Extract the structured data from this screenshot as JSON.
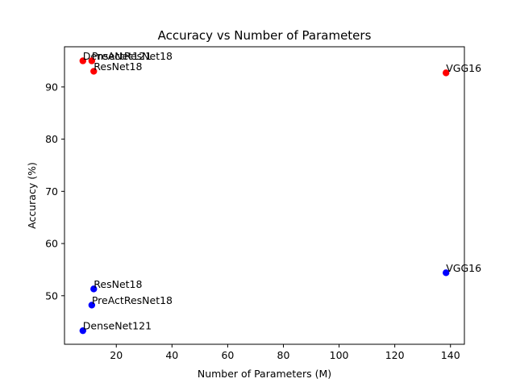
{
  "chart_data": {
    "type": "scatter",
    "title": "Accuracy vs Number of Parameters",
    "xlabel": "Number of Parameters (M)",
    "ylabel": "Accuracy (%)",
    "xlim": [
      1.4,
      145.0
    ],
    "ylim": [
      40.7,
      97.7
    ],
    "xticks": [
      20,
      40,
      60,
      80,
      100,
      120,
      140
    ],
    "yticks": [
      50,
      60,
      70,
      80,
      90
    ],
    "grid": false,
    "series": [
      {
        "color": "#ff0000",
        "points": [
          {
            "label": "DenseNet121",
            "x": 8.0,
            "y": 95.0
          },
          {
            "label": "PreActResNet18",
            "x": 11.2,
            "y": 95.0
          },
          {
            "label": "ResNet18",
            "x": 11.9,
            "y": 93.0
          },
          {
            "label": "VGG16",
            "x": 138.4,
            "y": 92.7
          }
        ]
      },
      {
        "color": "#0000ff",
        "points": [
          {
            "label": "DenseNet121",
            "x": 8.0,
            "y": 43.3
          },
          {
            "label": "PreActResNet18",
            "x": 11.2,
            "y": 48.2
          },
          {
            "label": "ResNet18",
            "x": 11.9,
            "y": 51.3
          },
          {
            "label": "VGG16",
            "x": 138.4,
            "y": 54.4
          }
        ]
      }
    ]
  }
}
